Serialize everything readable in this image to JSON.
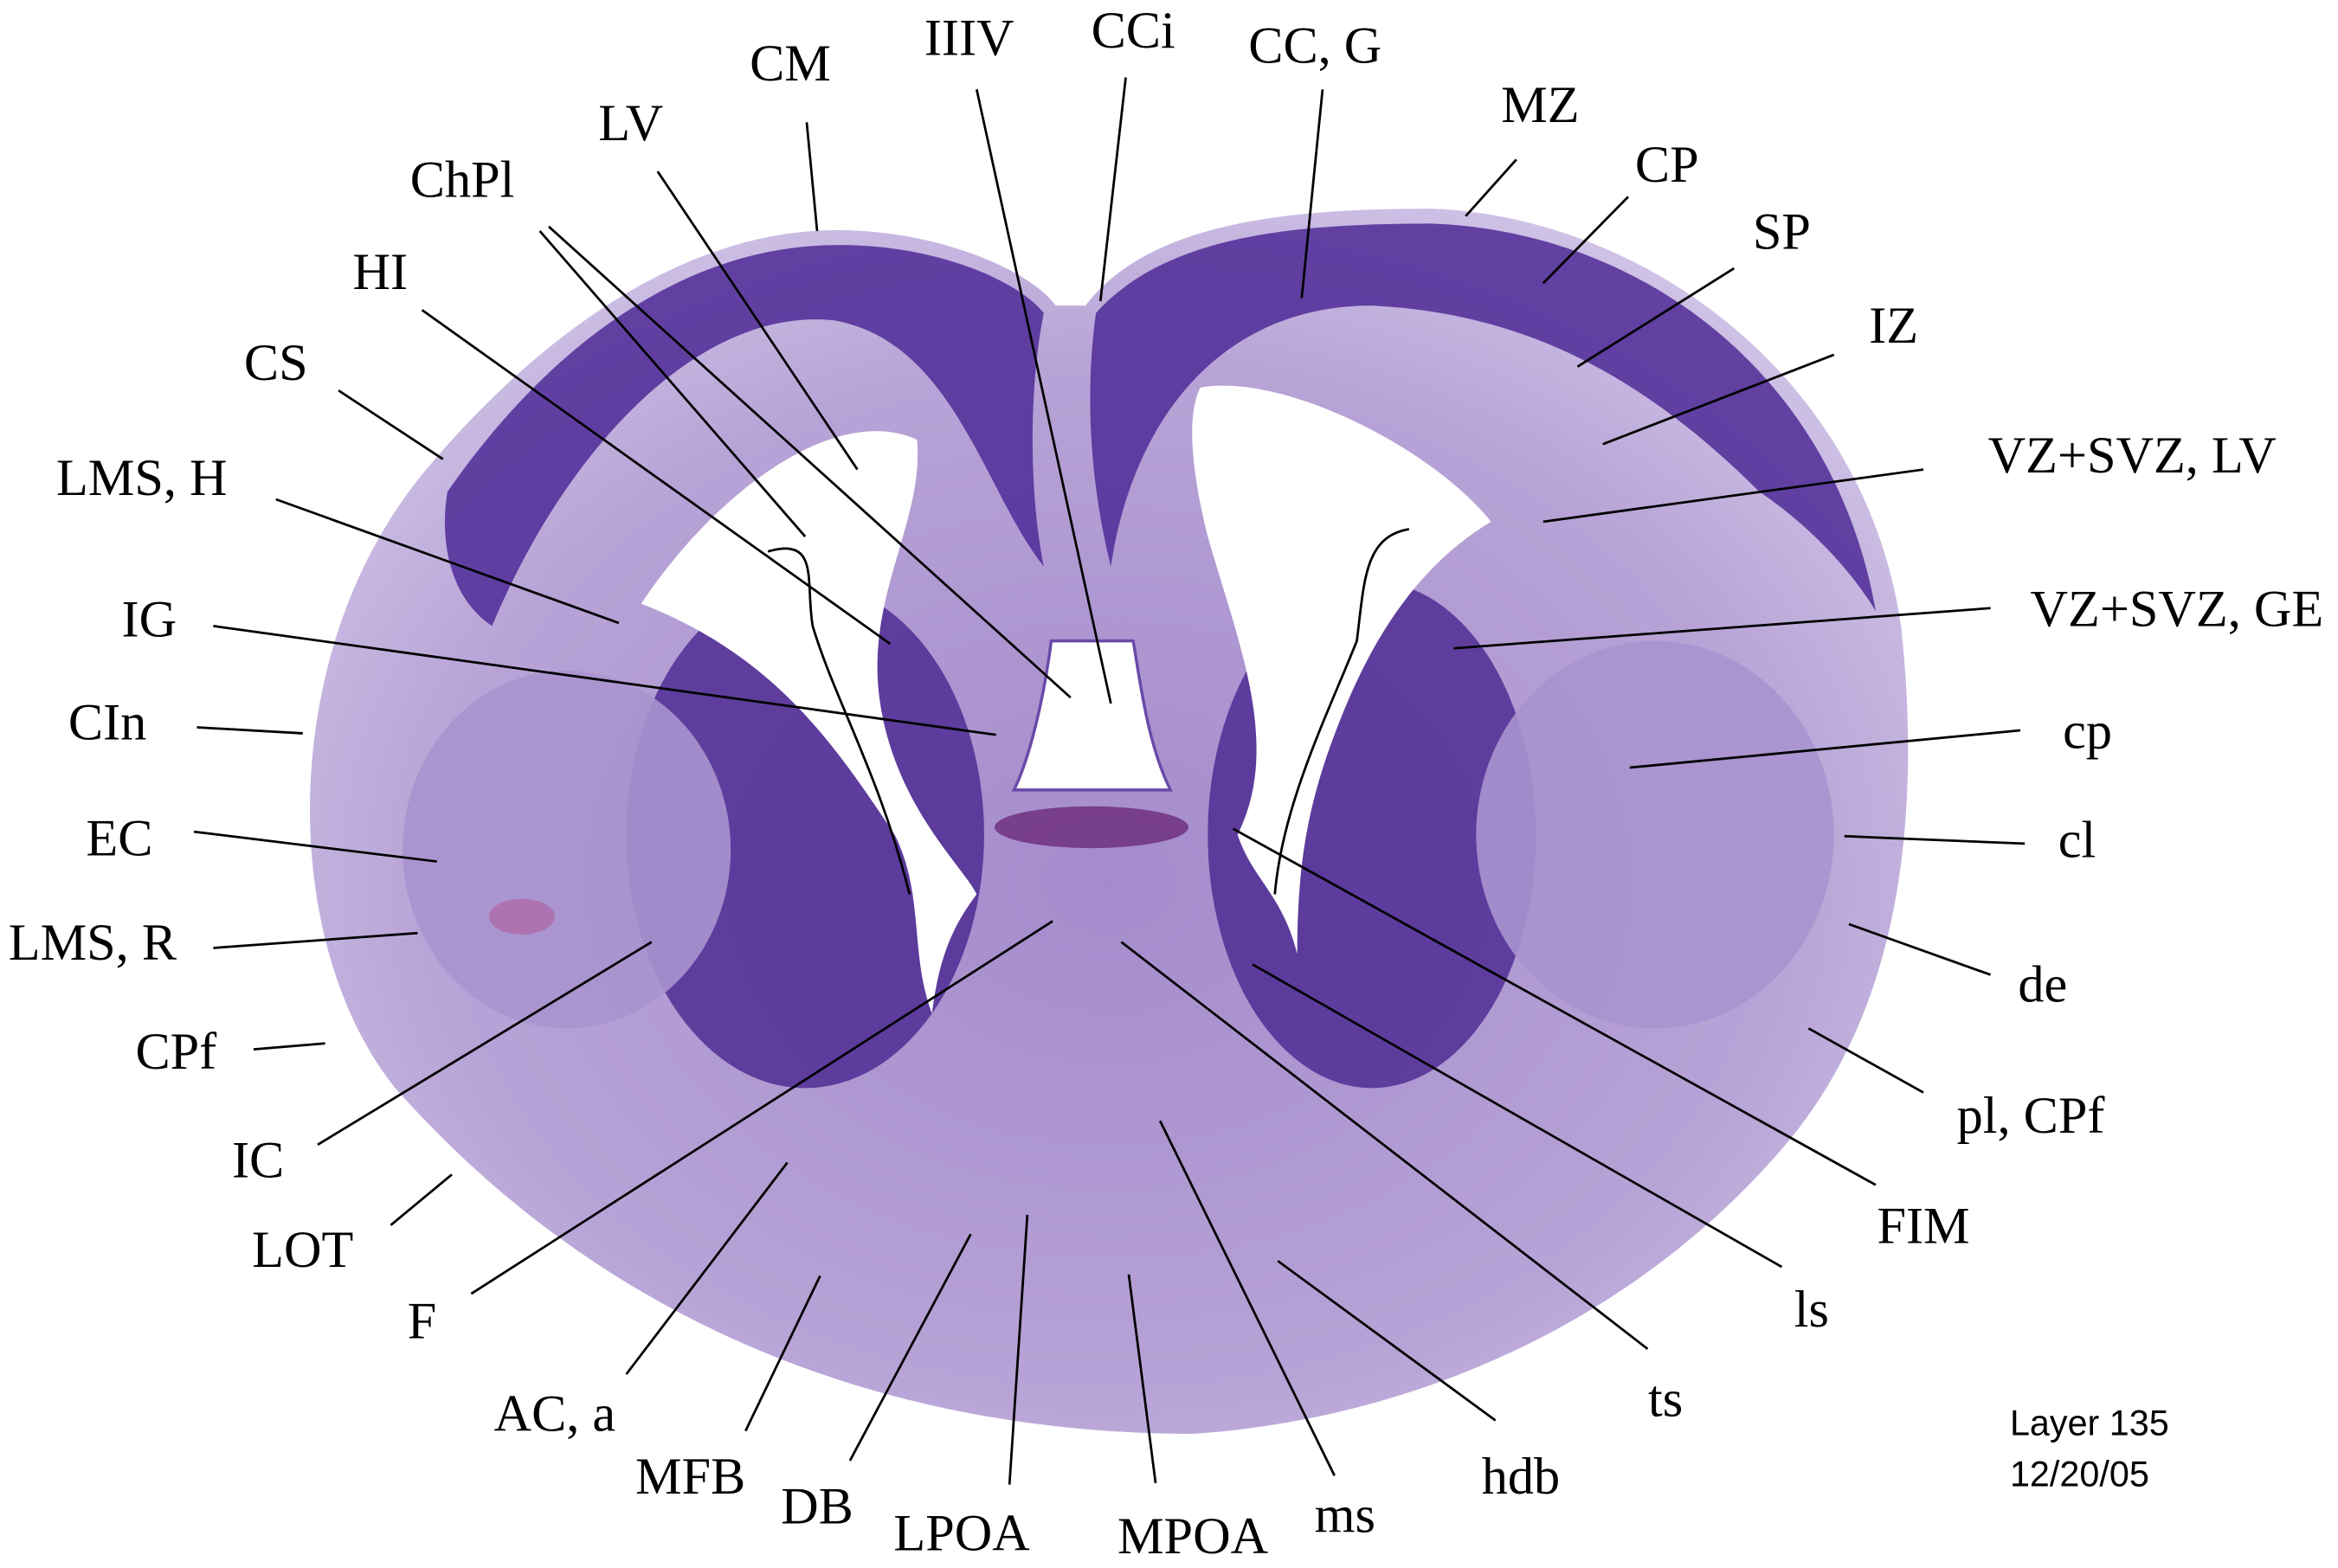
{
  "colors": {
    "tissue_light": "#b7a3d6",
    "tissue_mid": "#8a68c0",
    "tissue_dark": "#4a2590",
    "pink": "#b0508f",
    "background": "#ffffff"
  },
  "labels": {
    "CM": "CM",
    "LV": "LV",
    "ChPl": "ChPl",
    "HI": "HI",
    "CS": "CS",
    "LMS_H": "LMS, H",
    "IG": "IG",
    "CIn": "CIn",
    "EC": "EC",
    "LMS_R": "LMS, R",
    "CPf": "CPf",
    "IC": "IC",
    "LOT": "LOT",
    "F": "F",
    "AC_a": "AC, a",
    "MFB": "MFB",
    "DB": "DB",
    "LPOA": "LPOA",
    "MPOA": "MPOA",
    "ms": "ms",
    "hdb": "hdb",
    "ts": "ts",
    "ls": "ls",
    "FIM": "FIM",
    "pl_CPf": "pl, CPf",
    "de": "de",
    "cl": "cl",
    "cp": "cp",
    "VZ_SVZ_GE": "VZ+SVZ, GE",
    "VZ_SVZ_LV": "VZ+SVZ, LV",
    "IZ": "IZ",
    "SP": "SP",
    "CP": "CP",
    "MZ": "MZ",
    "CC_G": "CC, G",
    "CCi": "CCi",
    "IIIV": "IIIV"
  },
  "note": {
    "layer": "Layer 135",
    "date": "12/20/05"
  }
}
